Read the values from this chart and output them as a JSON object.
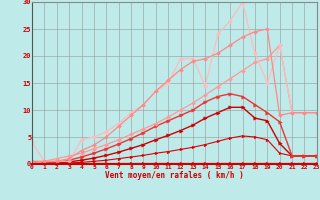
{
  "xlabel": "Vent moyen/en rafales ( km/h )",
  "background_color": "#beeaea",
  "grid_color": "#999999",
  "xlim": [
    0,
    23
  ],
  "ylim": [
    0,
    30
  ],
  "yticks": [
    0,
    5,
    10,
    15,
    20,
    25,
    30
  ],
  "xticks": [
    0,
    1,
    2,
    3,
    4,
    5,
    6,
    7,
    8,
    9,
    10,
    11,
    12,
    13,
    14,
    15,
    16,
    17,
    18,
    19,
    20,
    21,
    22,
    23
  ],
  "series": [
    {
      "x": [
        0,
        1,
        2,
        3,
        4,
        5,
        6,
        7,
        8,
        9,
        10,
        11,
        12,
        13,
        14,
        15,
        16,
        17,
        18,
        19,
        20,
        21,
        22,
        23
      ],
      "y": [
        0.5,
        0.1,
        0.1,
        0.1,
        0.1,
        0.1,
        0.1,
        0.1,
        0.1,
        0.1,
        0.1,
        0.1,
        0.1,
        0.1,
        0.1,
        0.1,
        0.1,
        0.1,
        0.1,
        0.1,
        0.1,
        0.1,
        0.1,
        0.1
      ],
      "color": "#ff0000",
      "lw": 0.8,
      "marker": ">",
      "ms": 2.0
    },
    {
      "x": [
        0,
        1,
        2,
        3,
        4,
        5,
        6,
        7,
        8,
        9,
        10,
        11,
        12,
        13,
        14,
        15,
        16,
        17,
        18,
        19,
        20,
        21,
        22,
        23
      ],
      "y": [
        0.0,
        0.1,
        0.1,
        0.2,
        0.3,
        0.5,
        0.7,
        1.0,
        1.3,
        1.6,
        2.0,
        2.3,
        2.7,
        3.1,
        3.6,
        4.2,
        4.8,
        5.2,
        5.0,
        4.5,
        2.0,
        1.5,
        1.5,
        1.5
      ],
      "color": "#dd0000",
      "lw": 0.8,
      "marker": ">",
      "ms": 2.0
    },
    {
      "x": [
        0,
        1,
        2,
        3,
        4,
        5,
        6,
        7,
        8,
        9,
        10,
        11,
        12,
        13,
        14,
        15,
        16,
        17,
        18,
        19,
        20,
        21,
        22,
        23
      ],
      "y": [
        0.0,
        0.1,
        0.2,
        0.4,
        0.7,
        1.1,
        1.6,
        2.2,
        2.9,
        3.6,
        4.5,
        5.3,
        6.2,
        7.2,
        8.5,
        9.5,
        10.5,
        10.5,
        8.5,
        8.0,
        3.8,
        1.5,
        1.5,
        1.5
      ],
      "color": "#cc0000",
      "lw": 1.0,
      "marker": ">",
      "ms": 2.5
    },
    {
      "x": [
        0,
        1,
        2,
        3,
        4,
        5,
        6,
        7,
        8,
        9,
        10,
        11,
        12,
        13,
        14,
        15,
        16,
        17,
        18,
        19,
        20,
        21,
        22,
        23
      ],
      "y": [
        0.0,
        0.1,
        0.3,
        0.7,
        1.3,
        2.0,
        2.8,
        3.7,
        4.7,
        5.8,
        7.0,
        8.0,
        9.0,
        10.0,
        11.5,
        12.5,
        13.0,
        12.5,
        11.0,
        9.5,
        7.8,
        1.5,
        1.5,
        1.5
      ],
      "color": "#ee3333",
      "lw": 1.0,
      "marker": ">",
      "ms": 2.5
    },
    {
      "x": [
        0,
        1,
        2,
        3,
        4,
        5,
        6,
        7,
        8,
        9,
        10,
        11,
        12,
        13,
        14,
        15,
        16,
        17,
        18,
        19,
        20,
        21,
        22,
        23
      ],
      "y": [
        0.0,
        0.5,
        1.0,
        1.5,
        2.0,
        2.8,
        3.6,
        4.5,
        5.5,
        6.5,
        7.5,
        8.7,
        10.0,
        11.3,
        12.8,
        14.3,
        15.8,
        17.3,
        18.8,
        19.5,
        22.0,
        9.5,
        9.5,
        9.5
      ],
      "color": "#ff9999",
      "lw": 0.9,
      "marker": "D",
      "ms": 2.0
    },
    {
      "x": [
        0,
        1,
        2,
        3,
        4,
        5,
        6,
        7,
        8,
        9,
        10,
        11,
        12,
        13,
        14,
        15,
        16,
        17,
        18,
        19,
        20,
        21,
        22,
        23
      ],
      "y": [
        4.0,
        0.5,
        0.5,
        0.5,
        4.5,
        5.0,
        6.0,
        7.5,
        9.5,
        11.0,
        13.5,
        15.0,
        19.5,
        19.5,
        14.5,
        24.0,
        26.5,
        30.0,
        20.5,
        15.0,
        22.0,
        9.5,
        9.5,
        9.5
      ],
      "color": "#ffbbbb",
      "lw": 0.9,
      "marker": "D",
      "ms": 2.0
    },
    {
      "x": [
        0,
        1,
        2,
        3,
        4,
        5,
        6,
        7,
        8,
        9,
        10,
        11,
        12,
        13,
        14,
        15,
        16,
        17,
        18,
        19,
        20,
        21,
        22,
        23
      ],
      "y": [
        0.5,
        0.5,
        0.5,
        1.0,
        2.5,
        3.5,
        5.0,
        7.0,
        9.0,
        11.0,
        13.5,
        15.5,
        17.5,
        19.0,
        19.5,
        20.5,
        22.0,
        23.5,
        24.5,
        25.0,
        9.0,
        9.5,
        9.5,
        9.5
      ],
      "color": "#ff8888",
      "lw": 0.9,
      "marker": "D",
      "ms": 2.0
    }
  ]
}
